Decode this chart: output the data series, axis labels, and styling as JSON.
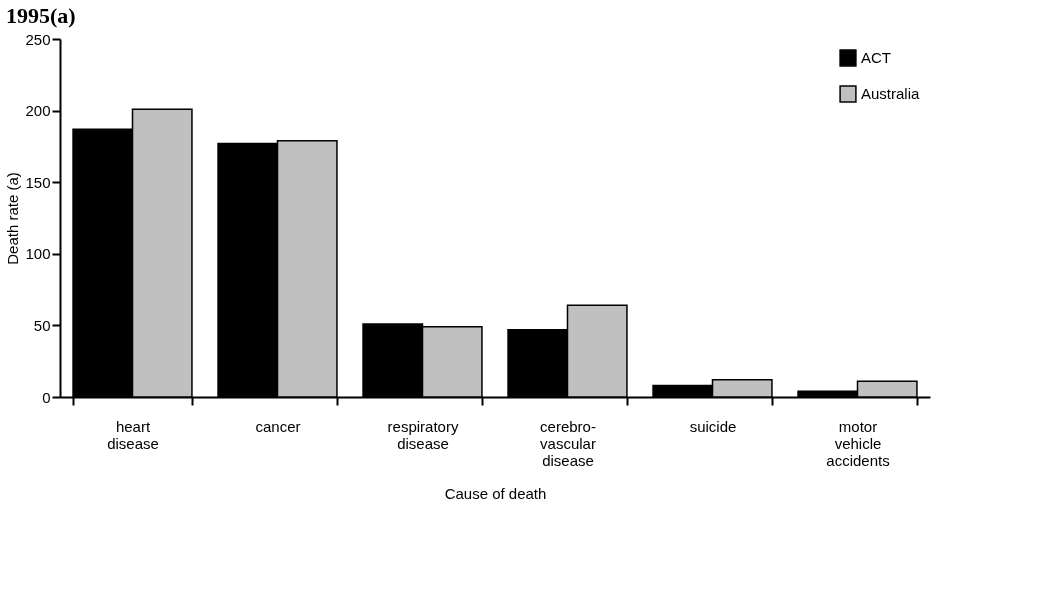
{
  "chart_data": {
    "type": "bar",
    "title": "1995(a)",
    "xlabel": "Cause of death",
    "ylabel": "Death rate (a)",
    "categories": [
      "heart disease",
      "cancer",
      "respiratory disease",
      "cerebro-vascular disease",
      "suicide",
      "motor vehicle accidents"
    ],
    "series": [
      {
        "name": "ACT",
        "color": "#000000",
        "values": [
          187,
          177,
          51,
          47,
          8,
          4
        ]
      },
      {
        "name": "Australia",
        "color": "#c0c0c0",
        "values": [
          201,
          179,
          49,
          64,
          12,
          11
        ]
      }
    ],
    "ylim": [
      0,
      250
    ],
    "yticks": [
      0,
      50,
      100,
      150,
      200,
      250
    ],
    "grid": false,
    "legend": "top right"
  }
}
